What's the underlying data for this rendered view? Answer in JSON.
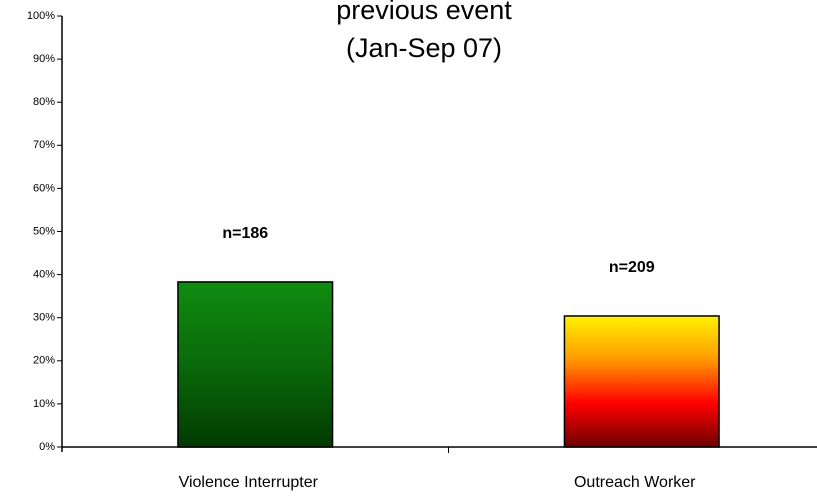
{
  "chart_data": {
    "type": "bar",
    "title": [
      "previous event",
      "(Jan-Sep 07)"
    ],
    "categories": [
      "Violence Interrupter",
      "Outreach Worker"
    ],
    "values": [
      38.3,
      30.4
    ],
    "annotations": [
      "n=186",
      "n=209"
    ],
    "bar_gradients": [
      [
        "#0f8c0f",
        "#0a6a0a",
        "#013a01"
      ],
      [
        "#fff200",
        "#ff9900",
        "#ff0000",
        "#6e0000"
      ]
    ],
    "ylim": [
      0,
      100
    ],
    "yticks": [
      {
        "value": 0,
        "label": "0%"
      },
      {
        "value": 10,
        "label": "10%"
      },
      {
        "value": 20,
        "label": "20%"
      },
      {
        "value": 30,
        "label": "30%"
      },
      {
        "value": 40,
        "label": "40%"
      },
      {
        "value": 50,
        "label": "50%"
      },
      {
        "value": 60,
        "label": "60%"
      },
      {
        "value": 70,
        "label": "70%"
      },
      {
        "value": 80,
        "label": "80%"
      },
      {
        "value": 90,
        "label": "90%"
      },
      {
        "value": 100,
        "label": "100%"
      }
    ],
    "grid": false
  }
}
